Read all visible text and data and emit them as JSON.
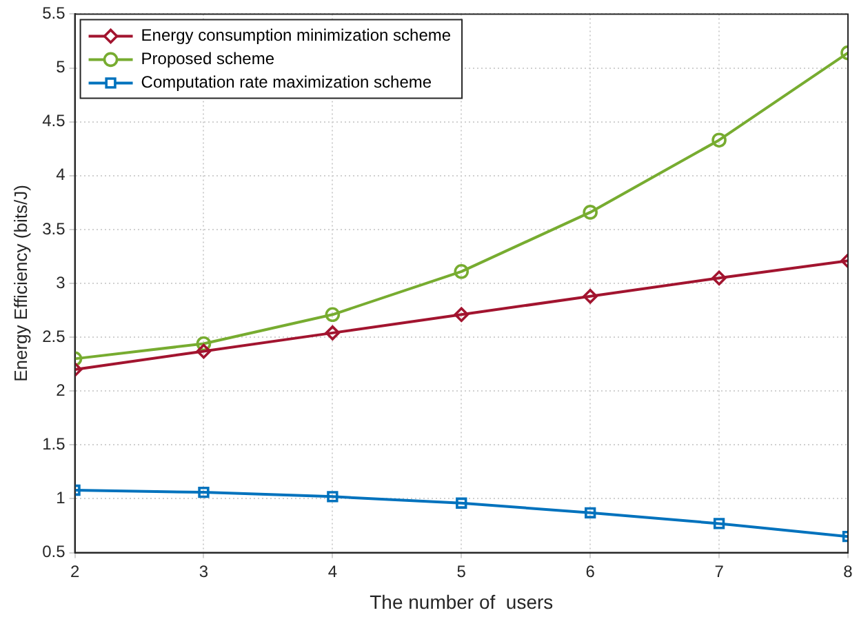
{
  "chart_data": {
    "type": "line",
    "xlabel": "The number of  users",
    "ylabel": "Energy Efficiency (bits/J)",
    "x": [
      2,
      3,
      4,
      5,
      6,
      7,
      8
    ],
    "xlim": [
      2,
      8
    ],
    "xticks": [
      2,
      3,
      4,
      5,
      6,
      7,
      8
    ],
    "ylim": [
      0.5,
      5.5
    ],
    "yticks": [
      0.5,
      1,
      1.5,
      2,
      2.5,
      3,
      3.5,
      4,
      4.5,
      5,
      5.5
    ],
    "grid": true,
    "legend": "top left",
    "line_style": "solid",
    "series": [
      {
        "name": "Energy consumption minimization scheme",
        "color": "#a2142f",
        "marker": "diamond",
        "values": [
          2.2,
          2.37,
          2.54,
          2.71,
          2.88,
          3.05,
          3.21
        ]
      },
      {
        "name": "Proposed scheme",
        "color": "#77ac30",
        "marker": "circle",
        "values": [
          2.3,
          2.44,
          2.71,
          3.11,
          3.66,
          4.33,
          5.14
        ]
      },
      {
        "name": "Computation rate maximization scheme",
        "color": "#0072bd",
        "marker": "square",
        "values": [
          1.08,
          1.06,
          1.02,
          0.96,
          0.87,
          0.77,
          0.65
        ]
      }
    ]
  }
}
